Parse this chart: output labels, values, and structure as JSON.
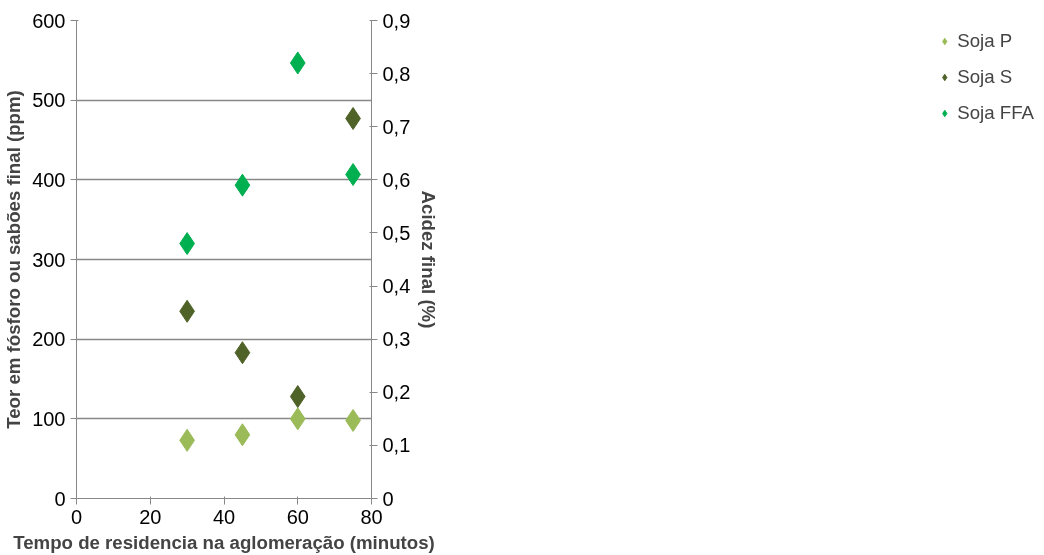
{
  "chart_data": {
    "type": "scatter",
    "xlabel": "Tempo de residencia na aglomeração (minutos)",
    "ylabel": "Teor em fósforo ou sabões final (ppm)",
    "y2label": "Acidez final (%)",
    "x": [
      30,
      45,
      60,
      75
    ],
    "series": [
      {
        "name": "Soja P",
        "color": "#9bbb59",
        "values": [
          73,
          80,
          100,
          98
        ]
      },
      {
        "name": "Soja S",
        "color": "#4f6228",
        "values": [
          235,
          183,
          128,
          477
        ]
      },
      {
        "name": "Soja FFA",
        "color": "#00b050",
        "values": [
          0.48,
          0.59,
          0.82,
          0.61
        ],
        "axis": "y2"
      }
    ],
    "xlim": [
      0,
      80
    ],
    "xticks": [
      0,
      20,
      40,
      60,
      80
    ],
    "ylim": [
      0,
      600
    ],
    "yticks": [
      0,
      100,
      200,
      300,
      400,
      500,
      600
    ],
    "y2lim": [
      0,
      0.9
    ],
    "y2ticks": [
      0,
      {
        "value": 0.1,
        "label": "0,1"
      },
      {
        "value": 0.2,
        "label": "0,2"
      },
      {
        "value": 0.3,
        "label": "0,3"
      },
      {
        "value": 0.4,
        "label": "0,4"
      },
      {
        "value": 0.5,
        "label": "0,5"
      },
      {
        "value": 0.6,
        "label": "0,6"
      },
      {
        "value": 0.7,
        "label": "0,7"
      },
      {
        "value": 0.8,
        "label": "0,8"
      },
      {
        "value": 0.9,
        "label": "0,9"
      }
    ],
    "grid": "y",
    "legend": "right",
    "marker": "diamond"
  }
}
